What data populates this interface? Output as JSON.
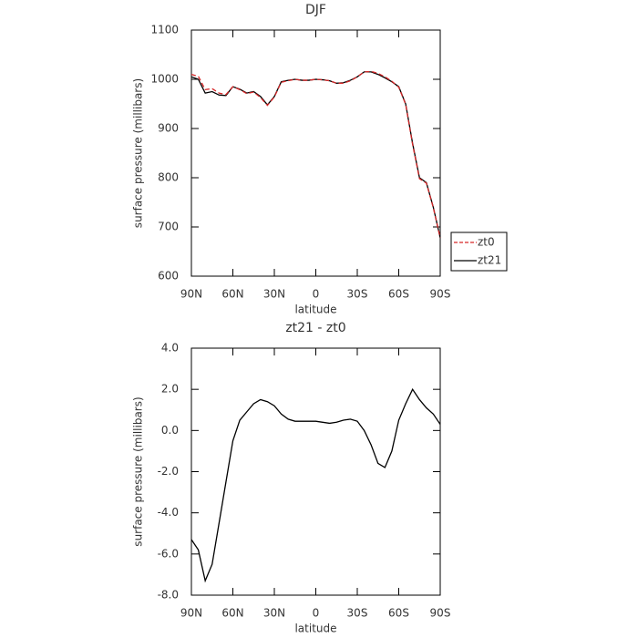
{
  "chart_data": [
    {
      "type": "line",
      "title": "DJF",
      "xlabel": "latitude",
      "ylabel": "surface pressure (millibars)",
      "x": [
        90,
        85,
        80,
        75,
        70,
        65,
        60,
        55,
        50,
        45,
        40,
        35,
        30,
        25,
        20,
        15,
        10,
        5,
        0,
        -5,
        -10,
        -15,
        -20,
        -25,
        -30,
        -35,
        -40,
        -45,
        -50,
        -55,
        -60,
        -65,
        -70,
        -75,
        -80,
        -85,
        -90
      ],
      "series": [
        {
          "name": "zt0",
          "color": "#d62728",
          "style": "dashed",
          "values": [
            1010,
            1006,
            979,
            981,
            972,
            969,
            985,
            979,
            971,
            974,
            963,
            947,
            964,
            994,
            997,
            1000,
            998,
            998,
            1000,
            999,
            997,
            992,
            992,
            997,
            1005,
            1015,
            1016,
            1012,
            1005,
            996,
            984,
            949,
            868,
            798,
            789,
            739,
            678
          ]
        },
        {
          "name": "zt21",
          "color": "#000000",
          "style": "solid",
          "values": [
            1005,
            1000,
            972,
            975,
            968,
            967,
            985,
            980,
            972,
            975,
            965,
            948,
            965,
            995,
            998,
            1000,
            998,
            998,
            1000,
            999,
            997,
            992,
            993,
            998,
            1005,
            1015,
            1015,
            1010,
            1003,
            995,
            985,
            950,
            870,
            800,
            790,
            740,
            678
          ]
        }
      ],
      "xlim": [
        90,
        -90
      ],
      "xticks": [
        {
          "value": 90,
          "label": "90N"
        },
        {
          "value": 60,
          "label": "60N"
        },
        {
          "value": 30,
          "label": "30N"
        },
        0,
        {
          "value": -30,
          "label": "30S"
        },
        {
          "value": -60,
          "label": "60S"
        },
        {
          "value": -90,
          "label": "90S"
        }
      ],
      "ylim": [
        600,
        1100
      ],
      "yticks": [
        600,
        700,
        800,
        900,
        1000,
        1100
      ],
      "legend": "outside-right"
    },
    {
      "type": "line",
      "title": "zt21 - zt0",
      "xlabel": "latitude",
      "ylabel": "surface pressure (millibars)",
      "x": [
        90,
        85,
        80,
        75,
        70,
        65,
        60,
        55,
        50,
        45,
        40,
        35,
        30,
        25,
        20,
        15,
        10,
        5,
        0,
        -5,
        -10,
        -15,
        -20,
        -25,
        -30,
        -35,
        -40,
        -45,
        -50,
        -55,
        -60,
        -65,
        -70,
        -75,
        -80,
        -85,
        -90
      ],
      "values": [
        -5.3,
        -5.8,
        -7.3,
        -6.5,
        -4.5,
        -2.5,
        -0.5,
        0.5,
        0.9,
        1.3,
        1.5,
        1.4,
        1.2,
        0.8,
        0.55,
        0.45,
        0.45,
        0.45,
        0.45,
        0.4,
        0.35,
        0.4,
        0.5,
        0.55,
        0.45,
        0.0,
        -0.7,
        -1.6,
        -1.8,
        -1.0,
        0.5,
        1.3,
        2.0,
        1.5,
        1.1,
        0.8,
        0.3
      ],
      "color": "#000000",
      "xlim": [
        90,
        -90
      ],
      "xticks": [
        {
          "value": 90,
          "label": "90N"
        },
        {
          "value": 60,
          "label": "60N"
        },
        {
          "value": 30,
          "label": "30N"
        },
        0,
        {
          "value": -30,
          "label": "30S"
        },
        {
          "value": -60,
          "label": "60S"
        },
        {
          "value": -90,
          "label": "90S"
        }
      ],
      "ylim": [
        -8,
        4
      ],
      "yticks": [
        {
          "value": -8,
          "label": "-8.0"
        },
        {
          "value": -6,
          "label": "-6.0"
        },
        {
          "value": -4,
          "label": "-4.0"
        },
        {
          "value": -2,
          "label": "-2.0"
        },
        {
          "value": 0,
          "label": "0.0"
        },
        {
          "value": 2,
          "label": "2.0"
        },
        {
          "value": 4,
          "label": "4.0"
        }
      ]
    }
  ]
}
